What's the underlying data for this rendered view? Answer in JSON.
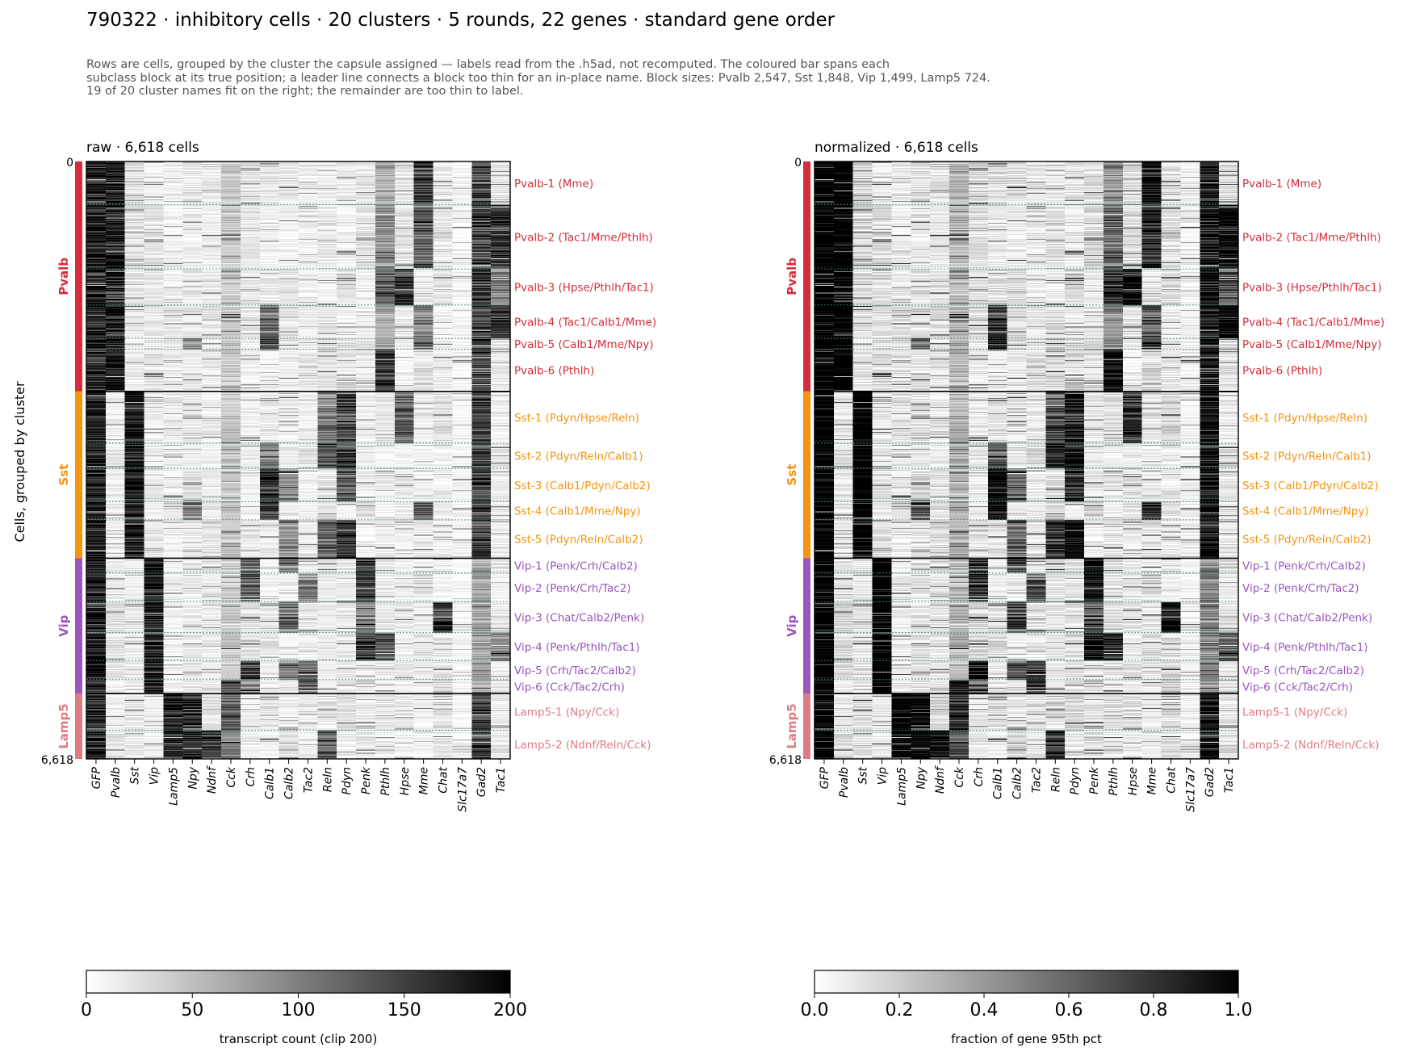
{
  "title": "790322 · inhibitory cells · 20 clusters · 5 rounds, 22 genes · standard gene order",
  "subtitle_lines": [
    "Rows are cells, grouped by the cluster the capsule assigned — labels read from the .h5ad, not recomputed. The coloured bar spans each",
    "subclass block at its true position; a leader line connects a block too thin for an in-place name.  Block sizes: Pvalb 2,547, Sst 1,848, Vip 1,499, Lamp5 724.",
    "19 of 20 cluster names fit on the right; the remainder are too thin to label."
  ],
  "ylabel": "Cells, grouped by cluster",
  "colors": {
    "Pvalb": "#d62d3a",
    "Sst": "#f7930e",
    "Vip": "#9b55bd",
    "Lamp5": "#e07b85",
    "cluster_line": "#4a8a6e"
  },
  "chart_data": {
    "type": "heatmap",
    "total_cells": 6618,
    "y_tick_labels": [
      "0",
      "6,618"
    ],
    "genes": [
      "GFP",
      "Pvalb",
      "Sst",
      "Vip",
      "Lamp5",
      "Npy",
      "Ndnf",
      "Cck",
      "Crh",
      "Calb1",
      "Calb2",
      "Tac2",
      "Reln",
      "Pdyn",
      "Penk",
      "Pthlh",
      "Hpse",
      "Mme",
      "Chat",
      "Slc17a7",
      "Gad2",
      "Tac1"
    ],
    "subclasses": [
      {
        "name": "Pvalb",
        "cells": 2547
      },
      {
        "name": "Sst",
        "cells": 1848
      },
      {
        "name": "Vip",
        "cells": 1499
      },
      {
        "name": "Lamp5",
        "cells": 724
      }
    ],
    "clusters": [
      {
        "name": "Pvalb-1 (Mme)",
        "subclass": "Pvalb",
        "start": 0,
        "end": 480
      },
      {
        "name": "Pvalb-2 (Tac1/Mme/Pthlh)",
        "subclass": "Pvalb",
        "start": 480,
        "end": 1190
      },
      {
        "name": "Pvalb-3 (Hpse/Pthlh/Tac1)",
        "subclass": "Pvalb",
        "start": 1190,
        "end": 1590
      },
      {
        "name": "Pvalb-4 (Tac1/Calb1/Mme)",
        "subclass": "Pvalb",
        "start": 1590,
        "end": 1960
      },
      {
        "name": "Pvalb-5 (Calb1/Mme/Npy)",
        "subclass": "Pvalb",
        "start": 1960,
        "end": 2080
      },
      {
        "name": "Pvalb-6 (Pthlh)",
        "subclass": "Pvalb",
        "start": 2080,
        "end": 2547
      },
      {
        "name": "Sst-1 (Pdyn/Hpse/Reln)",
        "subclass": "Sst",
        "start": 2547,
        "end": 3120
      },
      {
        "name": "Sst-2 (Pdyn/Reln/Calb1)",
        "subclass": "Sst",
        "start": 3120,
        "end": 3400
      },
      {
        "name": "Sst-3 (Calb1/Pdyn/Calb2)",
        "subclass": "Sst",
        "start": 3400,
        "end": 3770
      },
      {
        "name": "Sst-4 (Calb1/Mme/Npy)",
        "subclass": "Sst",
        "start": 3770,
        "end": 3970
      },
      {
        "name": "Sst-5 (Pdyn/Reln/Calb2)",
        "subclass": "Sst",
        "start": 3970,
        "end": 4395
      },
      {
        "name": "Vip-1 (Penk/Crh/Calb2)",
        "subclass": "Vip",
        "start": 4395,
        "end": 4560
      },
      {
        "name": "Vip-2 (Penk/Crh/Tac2)",
        "subclass": "Vip",
        "start": 4560,
        "end": 4880
      },
      {
        "name": "Vip-3 (Chat/Calb2/Penk)",
        "subclass": "Vip",
        "start": 4880,
        "end": 5220
      },
      {
        "name": "Vip-4 (Penk/Pthlh/Tac1)",
        "subclass": "Vip",
        "start": 5220,
        "end": 5530
      },
      {
        "name": "Vip-5 (Crh/Tac2/Calb2)",
        "subclass": "Vip",
        "start": 5530,
        "end": 5740
      },
      {
        "name": "Vip-6 (Cck/Tac2/Crh)",
        "subclass": "Vip",
        "start": 5740,
        "end": 5894
      },
      {
        "name": "Lamp5-1 (Npy/Cck)",
        "subclass": "Lamp5",
        "start": 5894,
        "end": 6300
      },
      {
        "name": "Lamp5-2 (Ndnf/Reln/Cck)",
        "subclass": "Lamp5",
        "start": 6300,
        "end": 6618
      }
    ],
    "panels": [
      {
        "title": "raw · 6,618 cells",
        "colorbar_label": "transcript count (clip 200)",
        "vmin": 0,
        "vmax": 200,
        "ticks": [
          "0",
          "50",
          "100",
          "150",
          "200"
        ]
      },
      {
        "title": "normalized · 6,618 cells",
        "colorbar_label": "fraction of gene 95th pct",
        "vmin": 0,
        "vmax": 1,
        "ticks": [
          "0.0",
          "0.2",
          "0.4",
          "0.6",
          "0.8",
          "1.0"
        ]
      }
    ]
  }
}
